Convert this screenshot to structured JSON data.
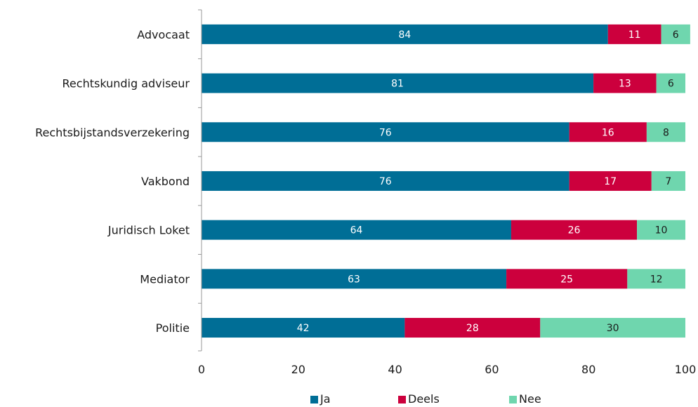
{
  "chart_data": {
    "type": "bar",
    "orientation": "horizontal",
    "stacked": true,
    "categories": [
      "Advocaat",
      "Rechtskundig adviseur",
      "Rechtsbijstandsverzekering",
      "Vakbond",
      "Juridisch Loket",
      "Mediator",
      "Politie"
    ],
    "series": [
      {
        "name": "Ja",
        "color": "#006e96",
        "values": [
          84,
          81,
          76,
          76,
          64,
          63,
          42
        ]
      },
      {
        "name": "Deels",
        "color": "#cc003d",
        "values": [
          11,
          13,
          16,
          17,
          26,
          25,
          28
        ]
      },
      {
        "name": "Nee",
        "color": "#6fd6ae",
        "values": [
          6,
          6,
          8,
          7,
          10,
          12,
          30
        ]
      }
    ],
    "xlim": [
      0,
      100
    ],
    "xticks": [
      "0",
      "20",
      "40",
      "60",
      "80",
      "100"
    ],
    "title": "",
    "xlabel": "",
    "ylabel": "",
    "grid": false,
    "legend_position": "bottom"
  }
}
